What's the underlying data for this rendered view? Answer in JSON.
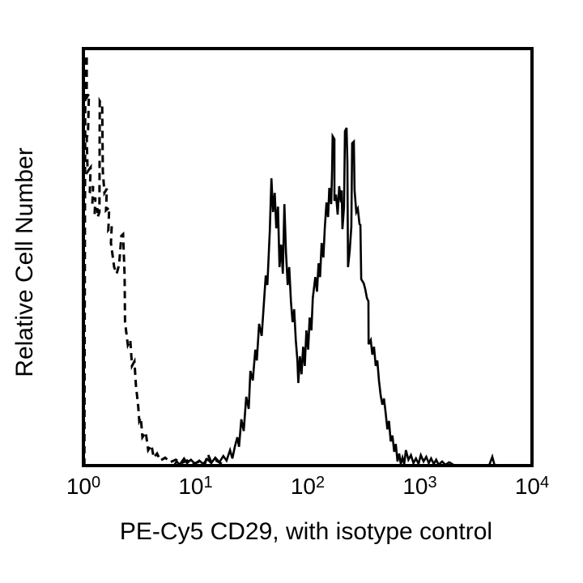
{
  "figure": {
    "background": "#ffffff",
    "axis_color": "#000000"
  },
  "chart_data": {
    "type": "line",
    "subtype": "flow-cytometry-overlay-histogram",
    "title": "",
    "xlabel": "PE-Cy5 CD29, with isotype control",
    "ylabel": "Relative Cell Number",
    "x_scale": "log10",
    "x_range": [
      1,
      10000
    ],
    "y_range": [
      0,
      100
    ],
    "grid": false,
    "legend": "none",
    "x_ticks": [
      {
        "base": "10",
        "exp": "0"
      },
      {
        "base": "10",
        "exp": "1"
      },
      {
        "base": "10",
        "exp": "2"
      },
      {
        "base": "10",
        "exp": "3"
      },
      {
        "base": "10",
        "exp": "4"
      }
    ],
    "series": [
      {
        "name": "isotype control",
        "line": "dashed",
        "color": "#000000",
        "points": [
          [
            1.02,
            0
          ],
          [
            1.04,
            98.4
          ],
          [
            1.07,
            97.7
          ],
          [
            1.07,
            88.3
          ],
          [
            1.12,
            89.1
          ],
          [
            1.1,
            79.8
          ],
          [
            1.07,
            78.6
          ],
          [
            1.09,
            70.5
          ],
          [
            1.16,
            71.5
          ],
          [
            1.14,
            65.4
          ],
          [
            1.22,
            67.0
          ],
          [
            1.2,
            62.7
          ],
          [
            1.28,
            64.3
          ],
          [
            1.26,
            60.2
          ],
          [
            1.33,
            61.7
          ],
          [
            1.34,
            59.6
          ],
          [
            1.39,
            60.8
          ],
          [
            1.4,
            87.4
          ],
          [
            1.47,
            86.4
          ],
          [
            1.49,
            70.5
          ],
          [
            1.54,
            65.4
          ],
          [
            1.62,
            66.4
          ],
          [
            1.59,
            61.2
          ],
          [
            1.7,
            61.9
          ],
          [
            1.67,
            56.5
          ],
          [
            1.79,
            57.5
          ],
          [
            1.76,
            53.4
          ],
          [
            1.88,
            47.6
          ],
          [
            1.98,
            46.0
          ],
          [
            2.08,
            48.2
          ],
          [
            2.18,
            55.1
          ],
          [
            2.26,
            55.5
          ],
          [
            2.33,
            45.6
          ],
          [
            2.35,
            34.4
          ],
          [
            2.49,
            28.9
          ],
          [
            2.62,
            30.1
          ],
          [
            2.71,
            23.9
          ],
          [
            2.85,
            25.0
          ],
          [
            2.94,
            19.2
          ],
          [
            3.08,
            14.2
          ],
          [
            3.15,
            10.7
          ],
          [
            3.25,
            11.5
          ],
          [
            3.36,
            6.8
          ],
          [
            3.6,
            8.0
          ],
          [
            3.78,
            3.7
          ],
          [
            4.04,
            4.9
          ],
          [
            4.24,
            1.9
          ],
          [
            4.54,
            2.9
          ],
          [
            4.85,
            1.2
          ],
          [
            5.36,
            1.9
          ],
          [
            5.93,
            0.8
          ],
          [
            6.66,
            1.4
          ],
          [
            7.48,
            0.6
          ],
          [
            8.4,
            1.2
          ],
          [
            9.6,
            0.4
          ],
          [
            10.8,
            1.0
          ],
          [
            12.1,
            0.4
          ],
          [
            12.9,
            2.7
          ],
          [
            13.8,
            0.8
          ],
          [
            15.3,
            1.2
          ],
          [
            17.2,
            0.4
          ]
        ]
      },
      {
        "name": "PE-Cy5 CD29",
        "line": "solid",
        "color": "#000000",
        "points": [
          [
            6.4,
            0
          ],
          [
            6.8,
            1.0
          ],
          [
            7.2,
            0.2
          ],
          [
            7.9,
            1.7
          ],
          [
            8.4,
            0.6
          ],
          [
            9.1,
            1.4
          ],
          [
            9.9,
            0.4
          ],
          [
            10.8,
            1.2
          ],
          [
            11.7,
            0.4
          ],
          [
            12.7,
            1.6
          ],
          [
            13.8,
            0.6
          ],
          [
            15.0,
            1.9
          ],
          [
            16.3,
            0.8
          ],
          [
            17.7,
            2.3
          ],
          [
            18.9,
            1.2
          ],
          [
            20.3,
            3.7
          ],
          [
            21.3,
            1.7
          ],
          [
            22.4,
            4.5
          ],
          [
            23.6,
            6.8
          ],
          [
            24.4,
            4.5
          ],
          [
            25.6,
            11.1
          ],
          [
            26.9,
            8.3
          ],
          [
            28.3,
            16.5
          ],
          [
            29.8,
            13.6
          ],
          [
            30.8,
            22.7
          ],
          [
            32.4,
            20.4
          ],
          [
            34.1,
            27.8
          ],
          [
            35.2,
            25.2
          ],
          [
            36.9,
            34.0
          ],
          [
            38.9,
            31.1
          ],
          [
            40.9,
            39.8
          ],
          [
            42.3,
            45.6
          ],
          [
            43.7,
            43.3
          ],
          [
            45.9,
            56.3
          ],
          [
            47.5,
            68.9
          ],
          [
            49.1,
            60.8
          ],
          [
            50.8,
            65.4
          ],
          [
            52.5,
            56.9
          ],
          [
            54.3,
            62.1
          ],
          [
            56.1,
            47.6
          ],
          [
            58.0,
            53.0
          ],
          [
            60.0,
            46.0
          ],
          [
            62.0,
            62.7
          ],
          [
            64.1,
            51.1
          ],
          [
            66.3,
            43.3
          ],
          [
            68.5,
            47.6
          ],
          [
            70.9,
            39.4
          ],
          [
            73.3,
            34.4
          ],
          [
            75.8,
            37.5
          ],
          [
            78.3,
            30.1
          ],
          [
            81.0,
            25.2
          ],
          [
            82.4,
            19.8
          ],
          [
            85.2,
            26.2
          ],
          [
            88.1,
            21.9
          ],
          [
            91.1,
            28.5
          ],
          [
            94.2,
            23.9
          ],
          [
            97.4,
            32.4
          ],
          [
            101,
            27.8
          ],
          [
            104,
            35.5
          ],
          [
            108,
            32.4
          ],
          [
            111,
            40.2
          ],
          [
            117,
            45.2
          ],
          [
            121,
            41.7
          ],
          [
            125,
            48.5
          ],
          [
            129,
            45.2
          ],
          [
            133,
            53.4
          ],
          [
            138,
            49.9
          ],
          [
            142,
            56.9
          ],
          [
            147,
            63.1
          ],
          [
            152,
            59.6
          ],
          [
            156,
            66.6
          ],
          [
            162,
            62.7
          ],
          [
            165,
            70.5
          ],
          [
            167,
            79.0
          ],
          [
            173,
            78.3
          ],
          [
            173,
            63.5
          ],
          [
            179,
            65.0
          ],
          [
            185,
            60.2
          ],
          [
            191,
            67.0
          ],
          [
            198,
            63.1
          ],
          [
            201,
            66.0
          ],
          [
            204,
            56.7
          ],
          [
            211,
            62.1
          ],
          [
            215,
            80.2
          ],
          [
            222,
            81.0
          ],
          [
            226,
            72.8
          ],
          [
            229,
            47.6
          ],
          [
            237,
            51.5
          ],
          [
            245,
            57.3
          ],
          [
            249,
            77.3
          ],
          [
            258,
            77.7
          ],
          [
            262,
            66.0
          ],
          [
            271,
            60.8
          ],
          [
            280,
            61.6
          ],
          [
            290,
            57.9
          ],
          [
            295,
            57.7
          ],
          [
            300,
            44.7
          ],
          [
            316,
            43.7
          ],
          [
            326,
            42.3
          ],
          [
            337,
            40.2
          ],
          [
            348,
            39.4
          ],
          [
            349,
            29.1
          ],
          [
            365,
            30.1
          ],
          [
            377,
            26.6
          ],
          [
            390,
            28.5
          ],
          [
            404,
            23.9
          ],
          [
            418,
            25.2
          ],
          [
            432,
            20.4
          ],
          [
            447,
            16.9
          ],
          [
            463,
            14.6
          ],
          [
            479,
            16.1
          ],
          [
            496,
            12.6
          ],
          [
            513,
            8.7
          ],
          [
            531,
            10.7
          ],
          [
            550,
            5.8
          ],
          [
            570,
            7.2
          ],
          [
            590,
            3.3
          ],
          [
            610,
            5.2
          ],
          [
            632,
            1.0
          ],
          [
            654,
            2.9
          ],
          [
            677,
            0.4
          ],
          [
            701,
            1.9
          ],
          [
            726,
            0.4
          ],
          [
            751,
            3.7
          ],
          [
            791,
            1.4
          ],
          [
            833,
            2.5
          ],
          [
            877,
            0.6
          ],
          [
            924,
            1.7
          ],
          [
            973,
            0.4
          ],
          [
            1020,
            2.5
          ],
          [
            1080,
            1.0
          ],
          [
            1140,
            2.1
          ],
          [
            1200,
            0.6
          ],
          [
            1260,
            1.7
          ],
          [
            1330,
            0.4
          ],
          [
            1400,
            1.4
          ],
          [
            1470,
            0.2
          ],
          [
            1580,
            1.0
          ],
          [
            1690,
            0.2
          ],
          [
            1830,
            0.8
          ],
          [
            1990,
            0.2
          ],
          [
            2170,
            0
          ],
          [
            4140,
            0
          ],
          [
            4430,
            2.1
          ],
          [
            4650,
            0
          ],
          [
            9680,
            0
          ]
        ]
      }
    ]
  }
}
